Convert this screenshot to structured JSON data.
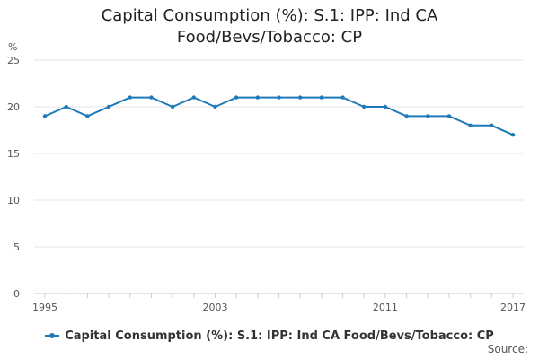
{
  "chart_data": {
    "type": "line",
    "title_lines": [
      "Capital Consumption (%): S.1: IPP: Ind CA",
      "Food/Bevs/Tobacco: CP"
    ],
    "ylabel": "%",
    "xlabel": "",
    "ylim": [
      0,
      25
    ],
    "yticks": [
      "0",
      "5",
      "10",
      "15",
      "20",
      "25"
    ],
    "xticks": [
      "1995",
      "2003",
      "2011",
      "2017"
    ],
    "x": [
      1995,
      1996,
      1997,
      1998,
      1999,
      2000,
      2001,
      2002,
      2003,
      2004,
      2005,
      2006,
      2007,
      2008,
      2009,
      2010,
      2011,
      2012,
      2013,
      2014,
      2015,
      2016,
      2017
    ],
    "series": [
      {
        "name": "Capital Consumption (%): S.1: IPP: Ind CA Food/Bevs/Tobacco: CP",
        "values": [
          19,
          20,
          19,
          20,
          21,
          21,
          20,
          21,
          20,
          21,
          21,
          21,
          21,
          21,
          21,
          20,
          20,
          19,
          19,
          19,
          18,
          18,
          17
        ],
        "color": "#1f7ab8"
      }
    ],
    "grid": true,
    "legend_position": "bottom",
    "source_label": "Source:"
  }
}
